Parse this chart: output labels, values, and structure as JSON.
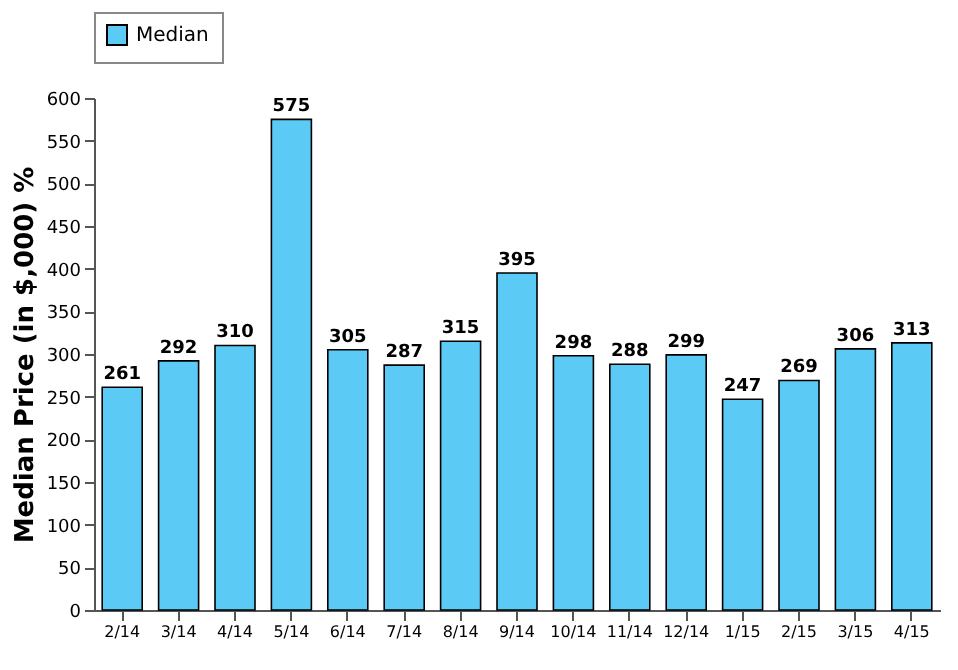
{
  "chart_data": {
    "type": "bar",
    "ylabel": "Median Price (in $,000) %",
    "categories": [
      "2/14",
      "3/14",
      "4/14",
      "5/14",
      "6/14",
      "7/14",
      "8/14",
      "9/14",
      "10/14",
      "11/14",
      "12/14",
      "1/15",
      "2/15",
      "3/15",
      "4/15"
    ],
    "series": [
      {
        "name": "Median",
        "color": "#5bcbf5",
        "values": [
          261,
          292,
          310,
          575,
          305,
          287,
          315,
          395,
          298,
          288,
          299,
          247,
          269,
          306,
          313
        ]
      }
    ],
    "ylim": [
      0,
      600
    ],
    "yticks": [
      0,
      50,
      100,
      150,
      200,
      250,
      300,
      350,
      400,
      450,
      500,
      550,
      600
    ],
    "data_labels": true,
    "grid": false,
    "legend": "top"
  }
}
